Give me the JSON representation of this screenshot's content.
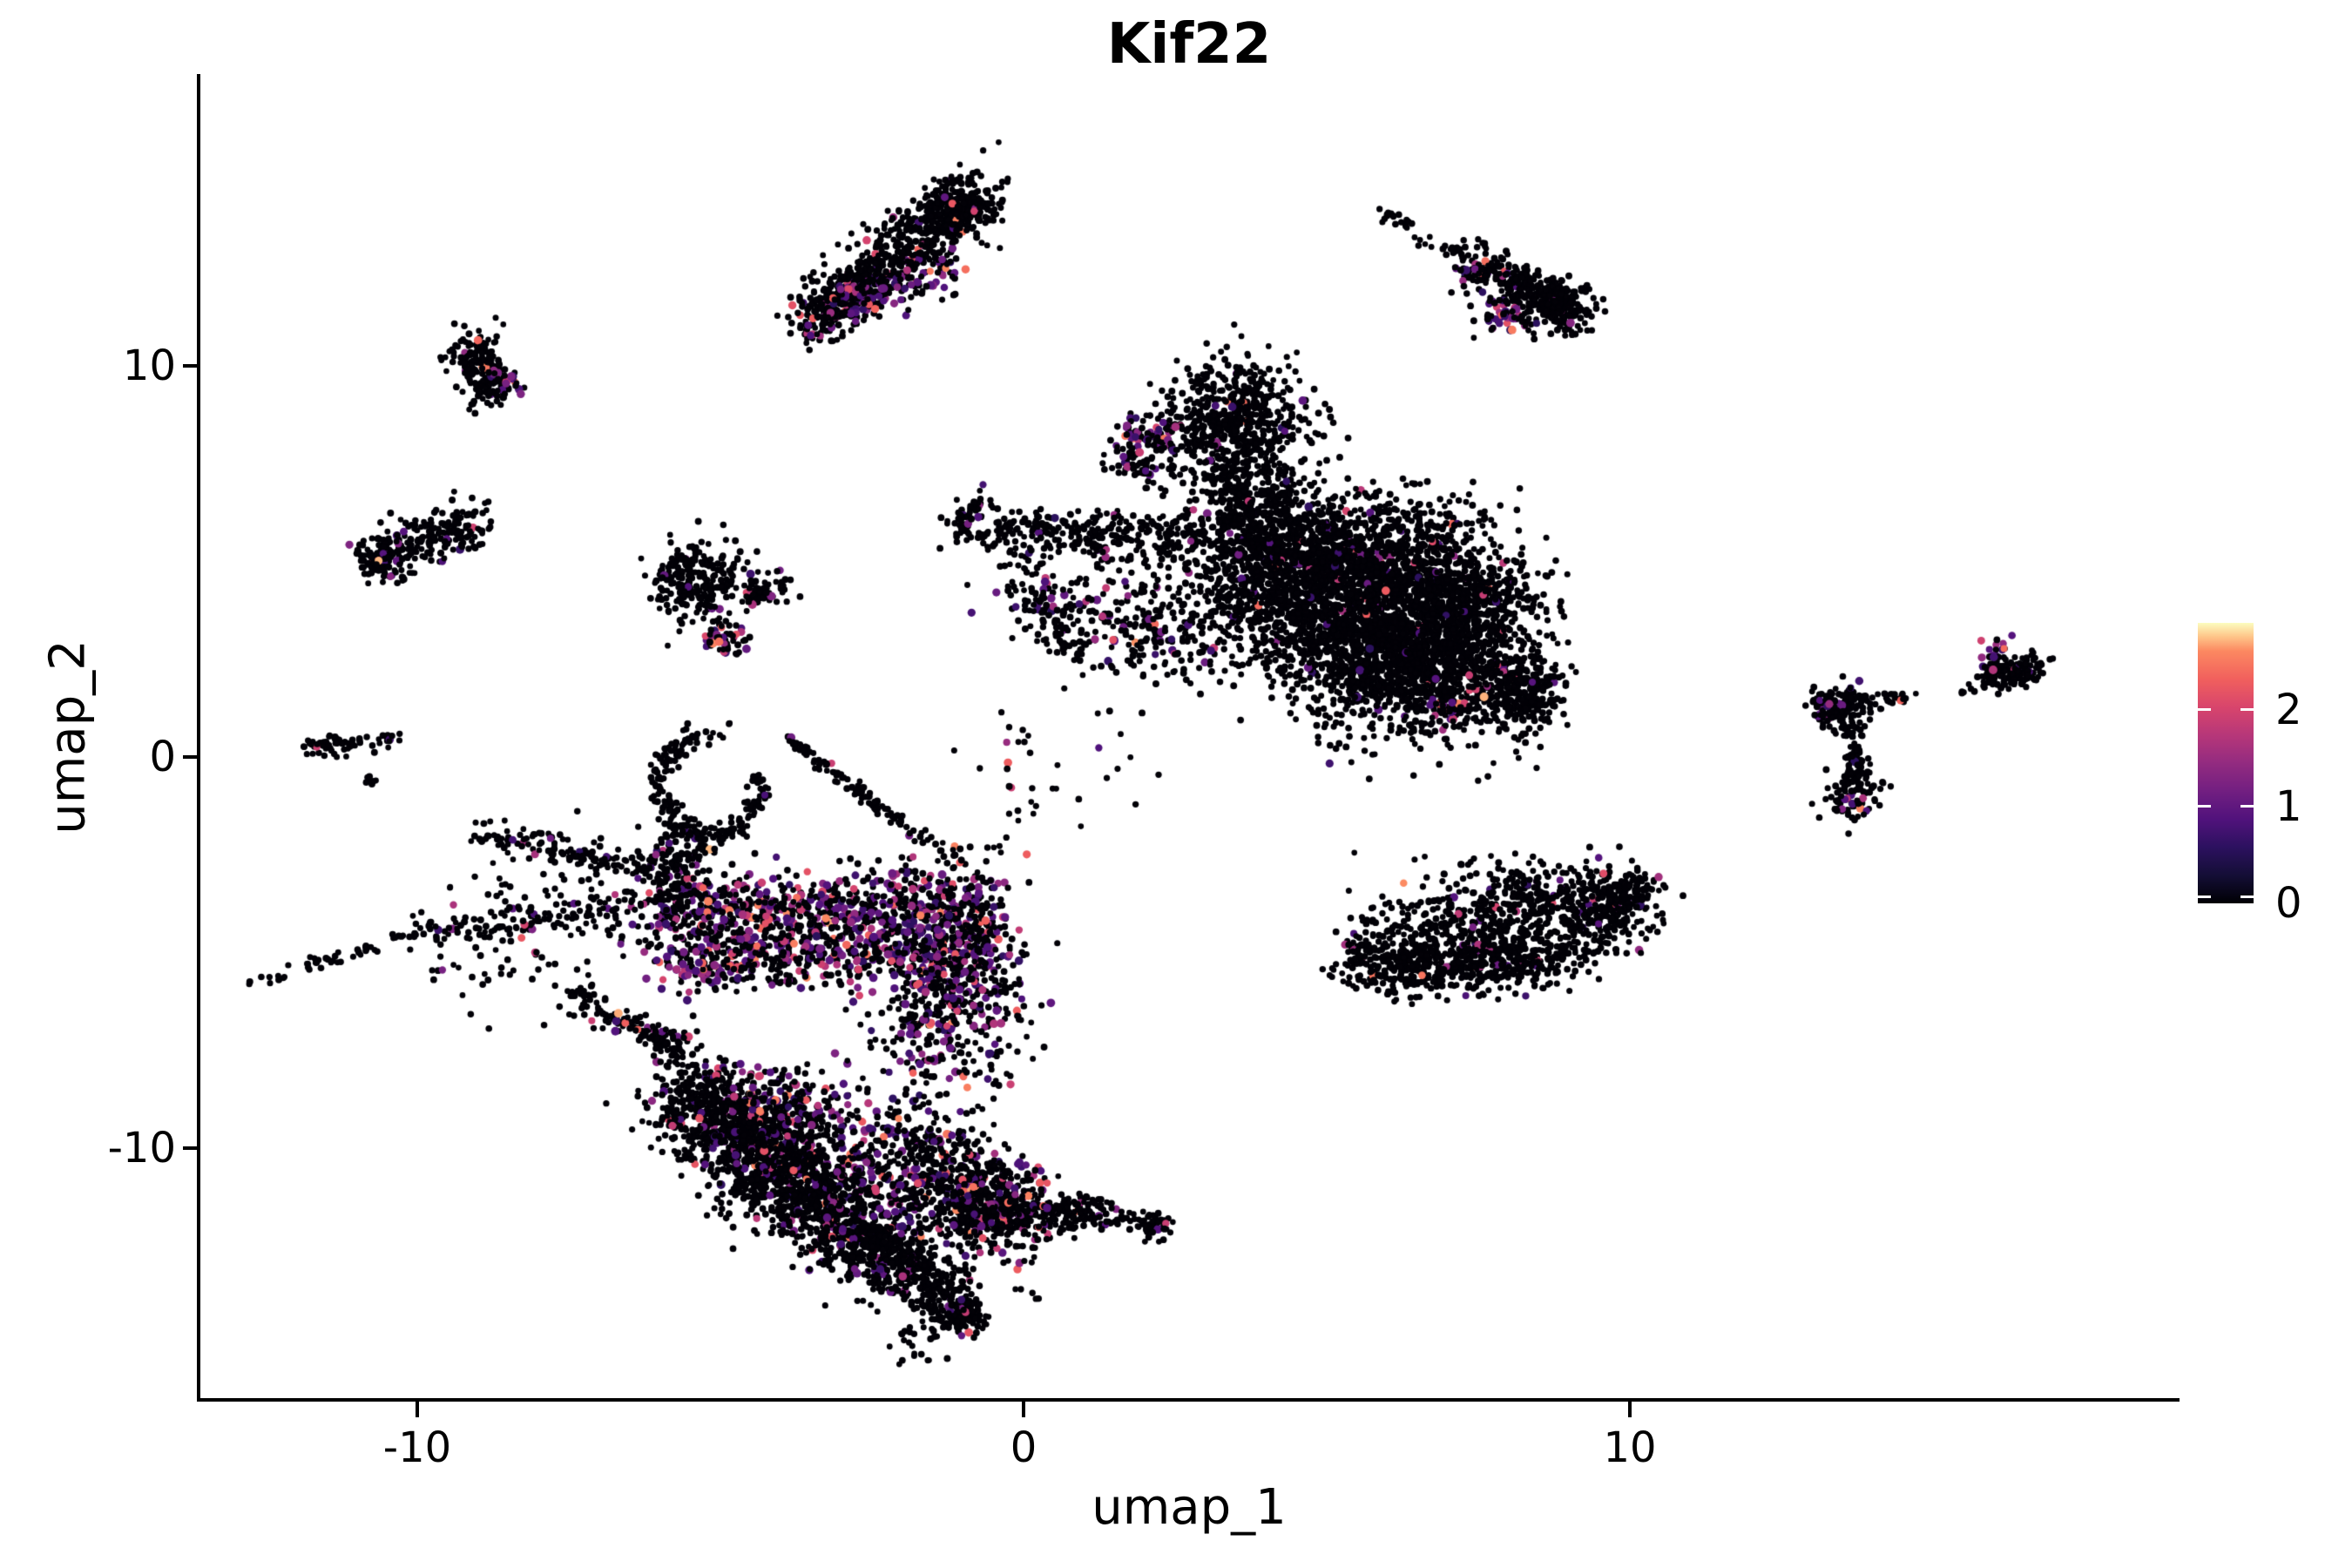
{
  "title": "Kif22",
  "axes": {
    "x": {
      "label": "umap_1",
      "ticks": [
        -10,
        0,
        10
      ],
      "tick_labels": [
        "-10",
        "0",
        "10"
      ],
      "range": [
        -13.6,
        19.0
      ]
    },
    "y": {
      "label": "umap_2",
      "ticks": [
        -10,
        0,
        10
      ],
      "tick_labels": [
        "-10",
        "0",
        "10"
      ],
      "range": [
        -16.4,
        17.5
      ]
    }
  },
  "legend": {
    "ticks": [
      0,
      1,
      2
    ],
    "tick_labels": [
      "0",
      "1",
      "2"
    ],
    "value_max": 2.9,
    "colormap": "magma"
  },
  "colors": {
    "background": "#ffffff",
    "axis": "#000000",
    "text": "#000000",
    "point_zero": "#020107",
    "magma_stops": [
      [
        0.0,
        "#000004"
      ],
      [
        0.1,
        "#140e36"
      ],
      [
        0.2,
        "#2c115f"
      ],
      [
        0.3,
        "#51127c"
      ],
      [
        0.4,
        "#721f81"
      ],
      [
        0.5,
        "#932b80"
      ],
      [
        0.6,
        "#b73779"
      ],
      [
        0.7,
        "#d8456c"
      ],
      [
        0.8,
        "#f1605d"
      ],
      [
        0.9,
        "#fc8961"
      ],
      [
        0.95,
        "#fec488"
      ],
      [
        1.0,
        "#fcfdbf"
      ]
    ]
  },
  "chart_data": {
    "type": "scatter",
    "title": "Kif22",
    "xlabel": "umap_1",
    "ylabel": "umap_2",
    "xlim": [
      -13.6,
      19.0
    ],
    "ylim": [
      -16.4,
      17.5
    ],
    "color_value_range": [
      0,
      2.9
    ],
    "n_points_approx": 17400,
    "description": "single-cell UMAP feature plot; expression value 0 = black, higher = magma colormap",
    "holes": [
      {
        "cx": -4.24,
        "cy": -6.93,
        "rx": 80,
        "ry": 44
      },
      {
        "cx": -5.17,
        "cy": -0.69,
        "rx": 38,
        "ry": 44
      }
    ],
    "clusters": [
      {
        "name": "top-center-comet",
        "strokes": [
          {
            "t": "band",
            "x1": -3.55,
            "y1": 11.22,
            "x2": -0.7,
            "y2": 14.45,
            "sp": 20,
            "n": 650,
            "cf": 0.05
          },
          {
            "t": "blob",
            "x": -1.11,
            "y": 14.01,
            "sx": 18,
            "sy": 16,
            "n": 160,
            "cf": 0.02
          },
          {
            "t": "band",
            "x1": -3.12,
            "y1": 11.67,
            "x2": -1.03,
            "y2": 12.56,
            "sp": 13,
            "n": 100,
            "cf": 0.55
          },
          {
            "t": "band",
            "x1": -3.48,
            "y1": 11.11,
            "x2": -2.69,
            "y2": 12.0,
            "sp": 12,
            "n": 120,
            "cf": 0.25
          }
        ]
      },
      {
        "name": "top-right-comet",
        "strokes": [
          {
            "t": "band",
            "x1": 5.93,
            "y1": 13.96,
            "x2": 6.39,
            "y2": 13.52,
            "sp": 5,
            "n": 22,
            "cf": 0
          },
          {
            "t": "band",
            "x1": 6.61,
            "y1": 13.23,
            "x2": 7.37,
            "y2": 12.67,
            "sp": 5,
            "n": 20,
            "cf": 0
          },
          {
            "t": "band",
            "x1": 7.37,
            "y1": 12.67,
            "x2": 9.17,
            "y2": 11.33,
            "sp": 14,
            "n": 300,
            "cf": 0.04
          },
          {
            "t": "blob",
            "x": 8.84,
            "y": 11.51,
            "sx": 16,
            "sy": 14,
            "n": 130,
            "cf": 0.02
          },
          {
            "t": "blob",
            "x": 7.83,
            "y": 11.38,
            "sx": 14,
            "sy": 12,
            "n": 40,
            "cf": 0.5
          },
          {
            "t": "blob",
            "x": 7.31,
            "y": 12.32,
            "sx": 8,
            "sy": 8,
            "n": 14,
            "cf": 0.6
          },
          {
            "t": "blob",
            "x": 8.26,
            "y": 11.11,
            "sx": 10,
            "sy": 9,
            "n": 18,
            "cf": 0.45
          }
        ]
      },
      {
        "name": "upper-left-cluster",
        "strokes": [
          {
            "t": "blob",
            "x": -9.05,
            "y": 10.29,
            "sx": 17,
            "sy": 15,
            "n": 110,
            "cf": 0.03
          },
          {
            "t": "blob",
            "x": -8.87,
            "y": 9.55,
            "sx": 15,
            "sy": 13,
            "n": 70,
            "cf": 0.12
          },
          {
            "t": "blob",
            "x": -8.59,
            "y": 9.49,
            "sx": 9,
            "sy": 9,
            "n": 26,
            "cf": 0.55
          }
        ]
      },
      {
        "name": "left-cluster",
        "strokes": [
          {
            "t": "band",
            "x1": -10.8,
            "y1": 5.14,
            "x2": -8.92,
            "y2": 5.95,
            "sp": 13,
            "n": 230,
            "cf": 0.05
          },
          {
            "t": "blob",
            "x": -10.56,
            "y": 4.92,
            "sx": 12,
            "sy": 10,
            "n": 60,
            "cf": 0.25
          }
        ]
      },
      {
        "name": "mid-left-cluster",
        "strokes": [
          {
            "t": "blob",
            "x": -5.42,
            "y": 4.48,
            "sx": 27,
            "sy": 23,
            "n": 240,
            "cf": 0.04
          },
          {
            "t": "band",
            "x1": -4.7,
            "y1": 4.1,
            "x2": -4.01,
            "y2": 4.25,
            "sp": 8,
            "n": 40,
            "cf": 0.05
          },
          {
            "t": "band",
            "x1": -5.24,
            "y1": 3.5,
            "x2": -4.63,
            "y2": 2.69,
            "sp": 10,
            "n": 60,
            "cf": 0.35
          },
          {
            "t": "blob",
            "x": -4.27,
            "y": 4.39,
            "sx": 22,
            "sy": 14,
            "n": 22,
            "cf": 0.05
          }
        ]
      },
      {
        "name": "far-left-small",
        "strokes": [
          {
            "t": "band",
            "x1": -11.74,
            "y1": 0.31,
            "x2": -10.27,
            "y2": 0.47,
            "sp": 6,
            "n": 65,
            "cf": 0.08
          },
          {
            "t": "blob",
            "x": -10.78,
            "y": -0.53,
            "sx": 5,
            "sy": 4,
            "n": 8,
            "cf": 0
          }
        ]
      },
      {
        "name": "central-continent",
        "strokes": [
          {
            "t": "blob",
            "x": 3.49,
            "y": 8.44,
            "sx": 42,
            "sy": 38,
            "n": 650,
            "cf": 0.025
          },
          {
            "t": "band",
            "x1": 1.59,
            "y1": 8.35,
            "x2": 2.46,
            "y2": 8.22,
            "sp": 11,
            "n": 60,
            "cf": 0.55
          },
          {
            "t": "blob",
            "x": 1.98,
            "y": 7.51,
            "sx": 24,
            "sy": 20,
            "n": 70,
            "cf": 0.15
          },
          {
            "t": "band",
            "x1": 3.42,
            "y1": 7.33,
            "x2": 3.61,
            "y2": 5.81,
            "sp": 11,
            "n": 70,
            "cf": 0.03
          },
          {
            "t": "band",
            "x1": -1.08,
            "y1": 5.86,
            "x2": 5.47,
            "y2": 5.41,
            "sp": 15,
            "n": 480,
            "cf": 0.035
          },
          {
            "t": "band",
            "x1": -1.11,
            "y1": 5.95,
            "x2": -0.56,
            "y2": 6.59,
            "sp": 7,
            "n": 35,
            "cf": 0.05
          },
          {
            "t": "blob",
            "x": 1.05,
            "y": 3.81,
            "sx": 52,
            "sy": 34,
            "n": 160,
            "cf": 0.12
          },
          {
            "t": "band",
            "x1": -0.07,
            "y1": 4.83,
            "x2": 0.91,
            "y2": 2.52,
            "sp": 11,
            "n": 80,
            "cf": 0.15
          },
          {
            "t": "band",
            "x1": 3.2,
            "y1": 4.83,
            "x2": 7.77,
            "y2": 2.38,
            "sp": 50,
            "n": 2400,
            "cf": 0.022
          },
          {
            "t": "band",
            "x1": 3.95,
            "y1": 5.5,
            "x2": 8.06,
            "y2": 4.03,
            "sp": 32,
            "n": 1100,
            "cf": 0.02
          },
          {
            "t": "blob",
            "x": 6.08,
            "y": 2.38,
            "sx": 55,
            "sy": 38,
            "n": 700,
            "cf": 0.025
          },
          {
            "t": "blob",
            "x": 8.17,
            "y": 1.63,
            "sx": 24,
            "sy": 21,
            "n": 260,
            "cf": 0.02
          },
          {
            "t": "blob",
            "x": 6.97,
            "y": 1.22,
            "sx": 14,
            "sy": 12,
            "n": 30,
            "cf": 0.5
          },
          {
            "t": "blob",
            "x": 2.2,
            "y": 3.1,
            "sx": 30,
            "sy": 26,
            "n": 90,
            "cf": 0.2
          },
          {
            "t": "blob",
            "x": 4.09,
            "y": 6.61,
            "sx": 40,
            "sy": 22,
            "n": 110,
            "cf": 0.04
          },
          {
            "t": "blob",
            "x": 6.54,
            "y": 6.12,
            "sx": 45,
            "sy": 20,
            "n": 140,
            "cf": 0.03
          }
        ]
      },
      {
        "name": "mid-right-oval",
        "strokes": [
          {
            "t": "band",
            "x1": 5.53,
            "y1": -4.97,
            "x2": 10.07,
            "y2": -3.81,
            "sp": 26,
            "n": 800,
            "cf": 0.03
          },
          {
            "t": "band",
            "x1": 5.68,
            "y1": -5.46,
            "x2": 8.98,
            "y2": -5.23,
            "sp": 16,
            "n": 380,
            "cf": 0.025
          },
          {
            "t": "band",
            "x1": 9.41,
            "y1": -4.21,
            "x2": 10.27,
            "y2": -3.1,
            "sp": 13,
            "n": 140,
            "cf": 0.03
          },
          {
            "t": "blob",
            "x": 8.23,
            "y": -3.32,
            "sx": 55,
            "sy": 17,
            "n": 110,
            "cf": 0.05
          },
          {
            "t": "blob",
            "x": 5.45,
            "y": -4.79,
            "sx": 8,
            "sy": 8,
            "n": 10,
            "cf": 0.4
          }
        ]
      },
      {
        "name": "right-y-cluster",
        "strokes": [
          {
            "t": "blob",
            "x": 13.46,
            "y": 1.22,
            "sx": 19,
            "sy": 14,
            "n": 120,
            "cf": 0.03
          },
          {
            "t": "blob",
            "x": 13.22,
            "y": 1.27,
            "sx": 8,
            "sy": 8,
            "n": 12,
            "cf": 0.6
          },
          {
            "t": "band",
            "x1": 13.78,
            "y1": 1.31,
            "x2": 14.81,
            "y2": 1.58,
            "sp": 5,
            "n": 30,
            "cf": 0.04
          },
          {
            "t": "band",
            "x1": 13.61,
            "y1": 0.78,
            "x2": 13.82,
            "y2": -0.42,
            "sp": 6,
            "n": 40,
            "cf": 0.03
          },
          {
            "t": "blob",
            "x": 13.66,
            "y": -0.82,
            "sx": 15,
            "sy": 19,
            "n": 100,
            "cf": 0.04
          },
          {
            "t": "blob",
            "x": 13.63,
            "y": -1.14,
            "sx": 10,
            "sy": 8,
            "n": 14,
            "cf": 0.55
          }
        ]
      },
      {
        "name": "far-right-comet",
        "strokes": [
          {
            "t": "band",
            "x1": 15.36,
            "y1": 1.6,
            "x2": 15.9,
            "y2": 1.96,
            "sp": 3,
            "n": 11,
            "cf": 0
          },
          {
            "t": "band",
            "x1": 15.93,
            "y1": 2.0,
            "x2": 16.72,
            "y2": 2.34,
            "sp": 9,
            "n": 150,
            "cf": 0.03
          },
          {
            "t": "blob",
            "x": 16.03,
            "y": 2.74,
            "sx": 9,
            "sy": 8,
            "n": 14,
            "cf": 0.7
          },
          {
            "t": "blob",
            "x": 16.01,
            "y": 2.29,
            "sx": 4,
            "sy": 6,
            "n": 5,
            "cf": 0.6
          }
        ]
      },
      {
        "name": "bottom-left-complex",
        "strokes": [
          {
            "t": "band",
            "x1": -9.01,
            "y1": -1.98,
            "x2": -5.85,
            "y2": -2.92,
            "sp": 9,
            "n": 150,
            "cf": 0.05
          },
          {
            "t": "band",
            "x1": -10.26,
            "y1": -4.63,
            "x2": -5.56,
            "y2": -3.63,
            "sp": 8,
            "n": 140,
            "cf": 0.05
          },
          {
            "t": "band",
            "x1": -12.72,
            "y1": -5.77,
            "x2": -10.26,
            "y2": -4.63,
            "sp": 5,
            "n": 45,
            "cf": 0.02
          },
          {
            "t": "band",
            "x1": -7.5,
            "y1": -6.04,
            "x2": -5.49,
            "y2": -7.55,
            "sp": 9,
            "n": 120,
            "cf": 0.08
          },
          {
            "t": "arc",
            "cx": -5.17,
            "cy": -0.69,
            "rx": 55,
            "ry": 60,
            "a0": 350,
            "a1": 640,
            "sp": 7,
            "n": 190,
            "cf": 0.04
          },
          {
            "t": "blob",
            "x": -5.62,
            "y": -2.58,
            "sx": 17,
            "sy": 28,
            "n": 140,
            "cf": 0.06
          },
          {
            "t": "band",
            "x1": -3.91,
            "y1": 0.47,
            "x2": -1.97,
            "y2": -1.74,
            "sp": 4,
            "n": 90,
            "cf": 0.02
          },
          {
            "t": "band",
            "x1": -1.97,
            "y1": -1.74,
            "x2": -1.08,
            "y2": -2.74,
            "sp": 6,
            "n": 25,
            "cf": 0.05
          },
          {
            "t": "band",
            "x1": -6.16,
            "y1": -4.34,
            "x2": -0.56,
            "y2": -3.72,
            "sp": 26,
            "n": 850,
            "cf": 0.33
          },
          {
            "t": "band",
            "x1": -5.68,
            "y1": -5.37,
            "x2": -0.56,
            "y2": -4.83,
            "sp": 18,
            "n": 450,
            "cf": 0.3
          },
          {
            "t": "blob",
            "x": -1.18,
            "y": -6.04,
            "sx": 42,
            "sy": 58,
            "n": 550,
            "cf": 0.33
          },
          {
            "t": "band",
            "x1": -6.26,
            "y1": -7.02,
            "x2": -5.76,
            "y2": -7.51,
            "sp": 3,
            "n": 30,
            "cf": 0.02
          },
          {
            "t": "band",
            "x1": -5.55,
            "y1": -8.62,
            "x2": -3.98,
            "y2": -10.31,
            "sp": 33,
            "n": 850,
            "cf": 0.08
          },
          {
            "t": "band",
            "x1": -4.24,
            "y1": -10.31,
            "x2": -2.54,
            "y2": -12.49,
            "sp": 28,
            "n": 750,
            "cf": 0.08
          },
          {
            "t": "band",
            "x1": -2.66,
            "y1": -12.32,
            "x2": -1.11,
            "y2": -13.92,
            "sp": 20,
            "n": 450,
            "cf": 0.06
          },
          {
            "t": "blob",
            "x": -1.02,
            "y": -14.28,
            "sx": 12,
            "sy": 11,
            "n": 110,
            "cf": 0.03
          },
          {
            "t": "band",
            "x1": -4.53,
            "y1": -8.98,
            "x2": -0.82,
            "y2": -11.34,
            "sp": 38,
            "n": 650,
            "cf": 0.3
          },
          {
            "t": "band",
            "x1": -1.65,
            "y1": -10.09,
            "x2": 0.01,
            "y2": -12.27,
            "sp": 32,
            "n": 450,
            "cf": 0.15
          },
          {
            "t": "band",
            "x1": -1.08,
            "y1": -11.6,
            "x2": 1.48,
            "y2": -11.69,
            "sp": 11,
            "n": 260,
            "cf": 0.08
          },
          {
            "t": "blob",
            "x": -0.17,
            "y": -10.76,
            "sx": 26,
            "sy": 8,
            "n": 25,
            "cf": 0.5
          },
          {
            "t": "band",
            "x1": 1.51,
            "y1": -11.74,
            "x2": 2.03,
            "y2": -11.92,
            "sp": 4,
            "n": 16,
            "cf": 0
          },
          {
            "t": "blob",
            "x": 2.14,
            "y": -11.98,
            "sx": 9,
            "sy": 8,
            "n": 40,
            "cf": 0.02
          },
          {
            "t": "blob",
            "x": 0.47,
            "y": -0.42,
            "sx": 55,
            "sy": 45,
            "n": 40,
            "cf": 0.1
          },
          {
            "t": "blob",
            "x": -8.29,
            "y": -4.43,
            "sx": 65,
            "sy": 42,
            "n": 110,
            "cf": 0.08
          },
          {
            "t": "blob",
            "x": -1.82,
            "y": -14.94,
            "sx": 16,
            "sy": 12,
            "n": 22,
            "cf": 0.05
          }
        ]
      }
    ]
  }
}
